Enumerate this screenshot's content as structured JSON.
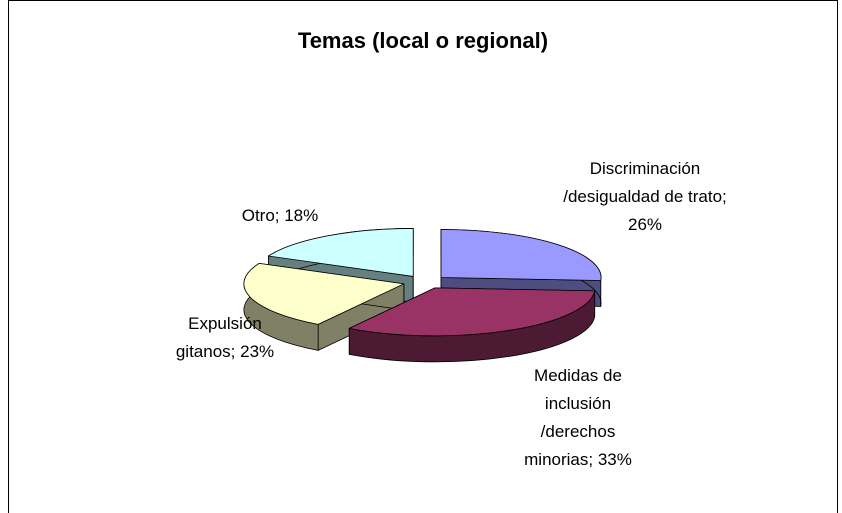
{
  "chart_data": {
    "type": "pie",
    "title": "Temas (local o regional)",
    "values": [
      26,
      33,
      23,
      18
    ],
    "value_labels": [
      "Discriminación /desigualdad de trato; 26%",
      "Medidas de inclusión /derechos minorias; 33%",
      "Expulsión gitanos; 23%",
      "Otro; 18%"
    ],
    "colors": [
      "#9999ff",
      "#993366",
      "#ffffcc",
      "#ccffff"
    ],
    "exploded": true,
    "three_d": true
  }
}
